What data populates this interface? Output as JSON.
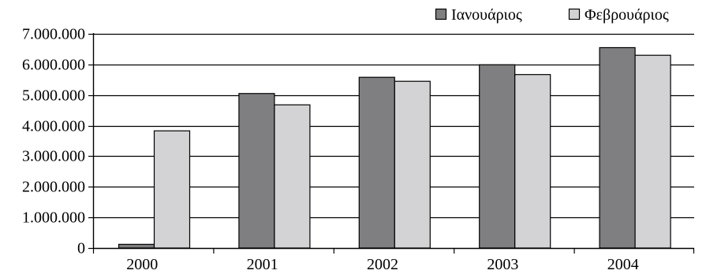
{
  "chart_data": {
    "type": "bar",
    "title": "",
    "xlabel": "",
    "ylabel": "",
    "categories": [
      "2000",
      "2001",
      "2002",
      "2003",
      "2004"
    ],
    "series": [
      {
        "name": "Ιανουάριος",
        "color": "#7f7f81",
        "values": [
          120000,
          5050000,
          5580000,
          5990000,
          6550000
        ]
      },
      {
        "name": "Φεβρουάριος",
        "color": "#d3d3d5",
        "values": [
          3830000,
          4680000,
          5450000,
          5670000,
          6300000
        ]
      }
    ],
    "ylim": [
      0,
      7000000
    ],
    "yticks": [
      0,
      1000000,
      2000000,
      3000000,
      4000000,
      5000000,
      6000000,
      7000000
    ],
    "ytick_labels": [
      "0",
      "1.000.000",
      "2.000.000",
      "3.000.000",
      "4.000.000",
      "5.000.000",
      "6.000.000",
      "7.000.000"
    ],
    "grid": "horizontal",
    "legend": "top-right"
  }
}
